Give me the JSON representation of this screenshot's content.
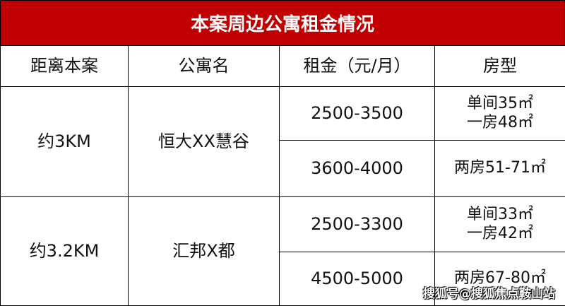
{
  "title": "本案周边公寓租金情况",
  "headers": [
    "距离本案",
    "公寓名",
    "租金（元/月）",
    "房型"
  ],
  "groups": [
    {
      "distance": "约3KM",
      "name": "恒大XX慧谷",
      "rows": [
        {
          "rent": "2500-3500",
          "type_lines": [
            "单间35㎡",
            "一房48㎡"
          ]
        },
        {
          "rent": "3600-4000",
          "type_lines": [
            "两房51-71㎡"
          ]
        }
      ]
    },
    {
      "distance": "约3.2KM",
      "name": "汇邦X都",
      "rows": [
        {
          "rent": "2500-3300",
          "type_lines": [
            "单间33㎡",
            "一房42㎡"
          ]
        },
        {
          "rent": "4500-5000",
          "type_lines": [
            "两房67-80㎡"
          ]
        }
      ]
    }
  ],
  "watermark": "搜狐号@搜狐焦点鞍山站",
  "colors": {
    "header_bg": "#c00000"
  }
}
